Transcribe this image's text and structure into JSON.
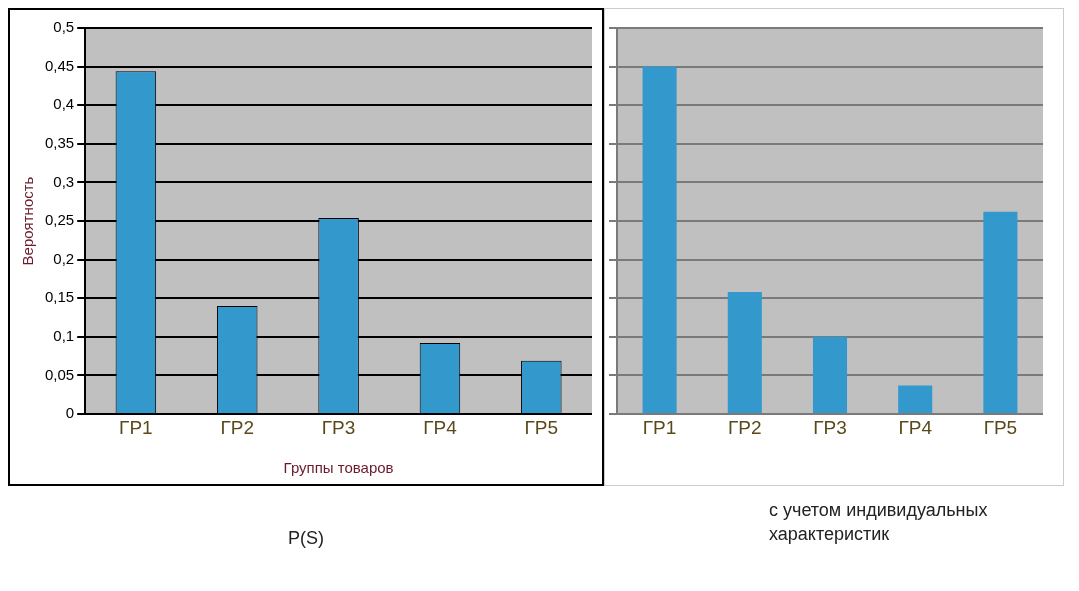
{
  "chart_data": [
    {
      "type": "bar",
      "title": "P(S)",
      "xlabel": "Группы товаров",
      "ylabel": "Вероятность",
      "categories": [
        "ГР1",
        "ГР2",
        "ГР3",
        "ГР4",
        "ГР5"
      ],
      "values": [
        0.444,
        0.14,
        0.254,
        0.092,
        0.069
      ],
      "color": "#3399cc",
      "ylim": [
        0,
        0.5
      ],
      "yticks": [
        0,
        {
          "value": 0.05,
          "label": "0,05"
        },
        {
          "value": 0.1,
          "label": "0,1"
        },
        {
          "value": 0.15,
          "label": "0,15"
        },
        {
          "value": 0.2,
          "label": "0,2"
        },
        {
          "value": 0.25,
          "label": "0,25"
        },
        {
          "value": 0.3,
          "label": "0,3"
        },
        {
          "value": 0.35,
          "label": "0,35"
        },
        {
          "value": 0.4,
          "label": "0,4"
        },
        {
          "value": 0.45,
          "label": "0,45"
        },
        {
          "value": 0.5,
          "label": "0,5"
        }
      ],
      "grid": "y",
      "legend": false
    },
    {
      "type": "bar",
      "title": "с учетом индивидуальных характеристик",
      "categories": [
        "ГР1",
        "ГР2",
        "ГР3",
        "ГР4",
        "ГР5"
      ],
      "values": [
        0.45,
        0.158,
        0.1,
        0.037,
        0.262
      ],
      "color": "#3399cc",
      "ylim": [
        0,
        0.5
      ],
      "yticks": [
        0,
        0.05,
        0.1,
        0.15,
        0.2,
        0.25,
        0.3,
        0.35,
        0.4,
        0.45,
        0.5
      ],
      "tick_labels": "x",
      "grid": "y",
      "legend": false
    }
  ]
}
